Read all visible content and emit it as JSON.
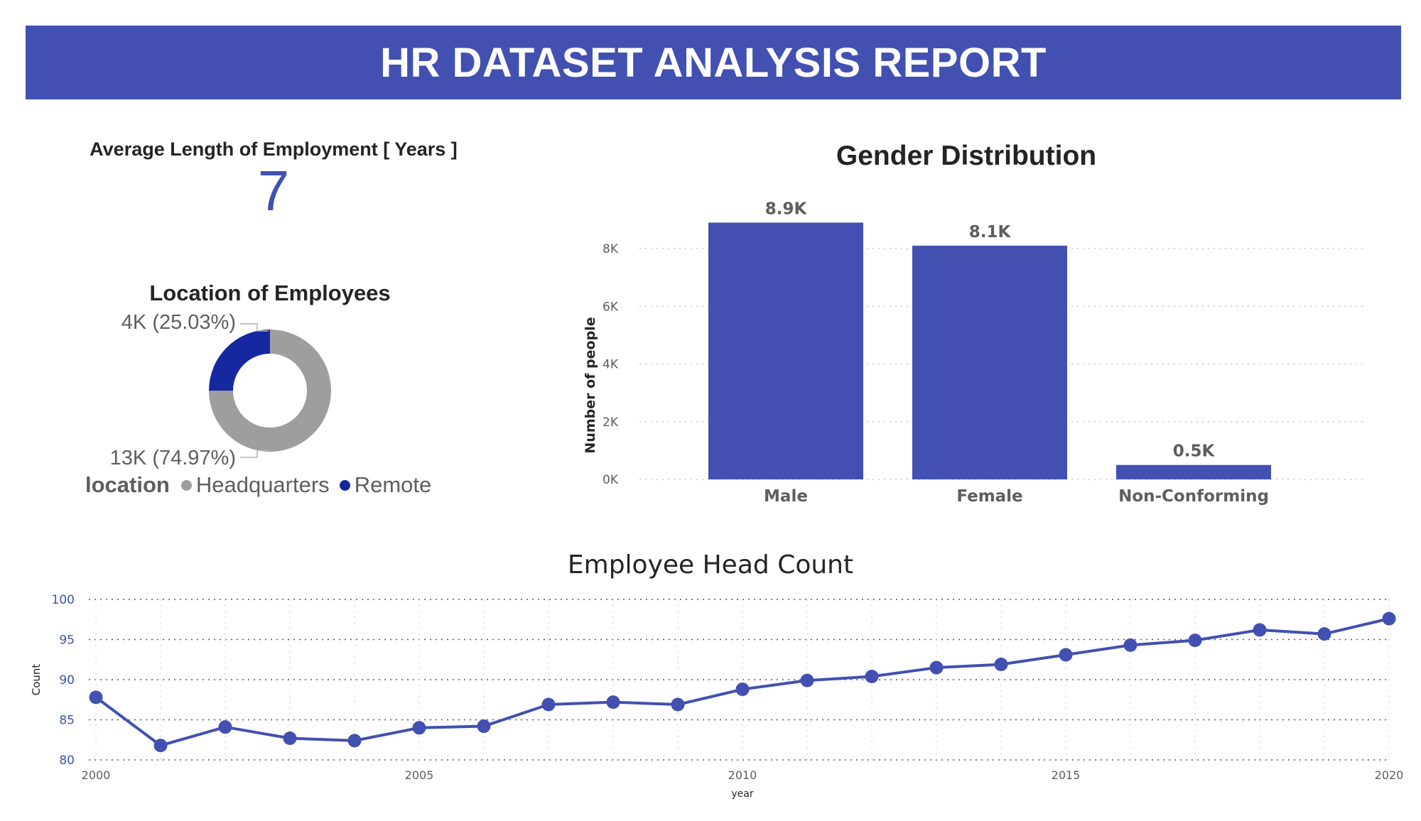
{
  "header": {
    "title": "HR DATASET ANALYSIS REPORT"
  },
  "kpi": {
    "label": "Average Length of Employment [ Years ]",
    "value": "7"
  },
  "colors": {
    "accent": "#4150b1",
    "headquarters": "#9e9e9e",
    "remote": "#1528a0"
  },
  "chart_data": [
    {
      "type": "pie",
      "title": "Location of Employees",
      "legend_title": "location",
      "legend_position": "bottom",
      "slices": [
        {
          "name": "Headquarters",
          "value": 74.97,
          "label": "13K (74.97%)",
          "color": "#9e9e9e"
        },
        {
          "name": "Remote",
          "value": 25.03,
          "label": "4K (25.03%)",
          "color": "#1528a0"
        }
      ]
    },
    {
      "type": "bar",
      "title": "Gender Distribution",
      "xlabel": "",
      "ylabel": "Number of people",
      "categories": [
        "Male",
        "Female",
        "Non-Conforming"
      ],
      "values": [
        8900,
        8100,
        500
      ],
      "data_labels": [
        "8.9K",
        "8.1K",
        "0.5K"
      ],
      "ylim": [
        0,
        8000
      ],
      "yticks": [
        0,
        2000,
        4000,
        6000,
        8000
      ],
      "ytick_labels": [
        "0K",
        "2K",
        "4K",
        "6K",
        "8K"
      ],
      "grid": true,
      "color": "#4150b1"
    },
    {
      "type": "line",
      "title": "Employee Head Count",
      "xlabel": "year",
      "ylabel": "Count",
      "x": [
        2000,
        2001,
        2002,
        2003,
        2004,
        2005,
        2006,
        2007,
        2008,
        2009,
        2010,
        2011,
        2012,
        2013,
        2014,
        2015,
        2016,
        2017,
        2018,
        2019,
        2020
      ],
      "y": [
        87.8,
        81.8,
        84.1,
        82.7,
        82.4,
        84.0,
        84.2,
        86.9,
        87.2,
        86.9,
        88.8,
        89.9,
        90.4,
        91.5,
        91.9,
        93.1,
        94.3,
        94.9,
        96.2,
        95.7,
        97.6
      ],
      "xlim": [
        2000,
        2020
      ],
      "xticks": [
        2000,
        2005,
        2010,
        2015,
        2020
      ],
      "ylim": [
        80,
        100
      ],
      "yticks": [
        80,
        85,
        90,
        95,
        100
      ],
      "grid": true,
      "color": "#4150b1"
    }
  ]
}
